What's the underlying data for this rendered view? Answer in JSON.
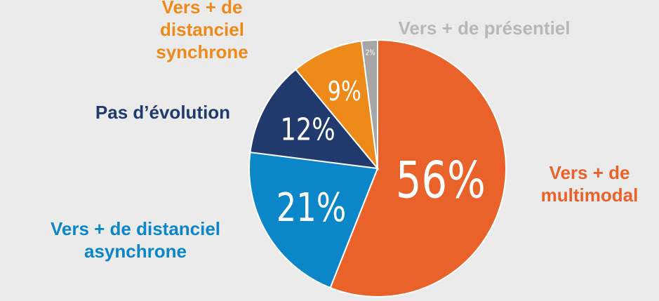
{
  "chart_data": {
    "type": "pie",
    "categories": [
      "Vers + de multimodal",
      "Vers + de distanciel asynchrone",
      "Pas d’évolution",
      "Vers + de distanciel synchrone",
      "Vers + de  présentiel"
    ],
    "values": [
      56,
      21,
      12,
      9,
      2
    ],
    "value_labels": [
      "56%",
      "21%",
      "12%",
      "9%",
      "2%"
    ],
    "colors": [
      "#e8622a",
      "#0b86c8",
      "#213a6e",
      "#ee8a1a",
      "#a6a6a6"
    ]
  }
}
